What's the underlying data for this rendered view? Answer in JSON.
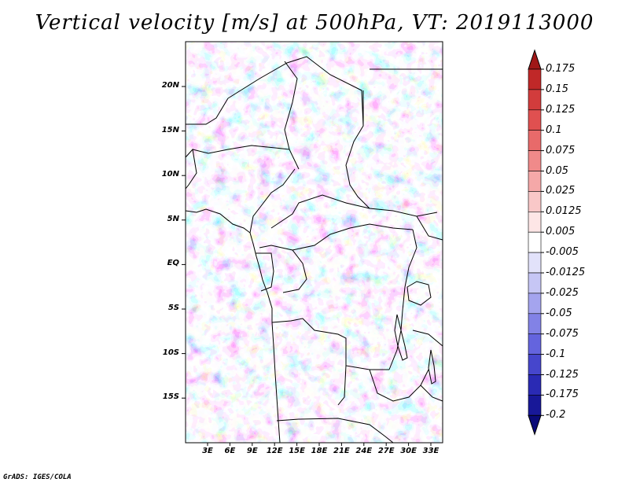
{
  "title": "Vertical velocity [m/s] at 500hPa, VT: 2019113000",
  "credit": "GrADS: IGES/COLA",
  "map": {
    "variable": "Vertical velocity",
    "units": "m/s",
    "level": "500hPa",
    "valid_time": "2019113000",
    "lat_labels": [
      "20N",
      "15N",
      "10N",
      "5N",
      "EQ",
      "5S",
      "10S",
      "15S"
    ],
    "lon_labels": [
      "3E",
      "6E",
      "9E",
      "12E",
      "15E",
      "18E",
      "21E",
      "24E",
      "27E",
      "30E",
      "33E"
    ]
  },
  "colorbar": {
    "labels": [
      "0.175",
      "0.15",
      "0.125",
      "0.1",
      "0.075",
      "0.05",
      "0.025",
      "0.0125",
      "0.005",
      "-0.005",
      "-0.0125",
      "-0.025",
      "-0.05",
      "-0.075",
      "-0.1",
      "-0.125",
      "-0.175",
      "-0.2"
    ],
    "colors": [
      "#a01818",
      "#c02828",
      "#d23c3c",
      "#e05050",
      "#e86a6a",
      "#f08a8a",
      "#f5a8a8",
      "#f9c8c8",
      "#fde6e6",
      "#ffffff",
      "#e2e2fa",
      "#c6c6f5",
      "#a4a4ee",
      "#8282e6",
      "#6464de",
      "#4646cc",
      "#2a2ab4",
      "#181898",
      "#0a0a78"
    ]
  }
}
